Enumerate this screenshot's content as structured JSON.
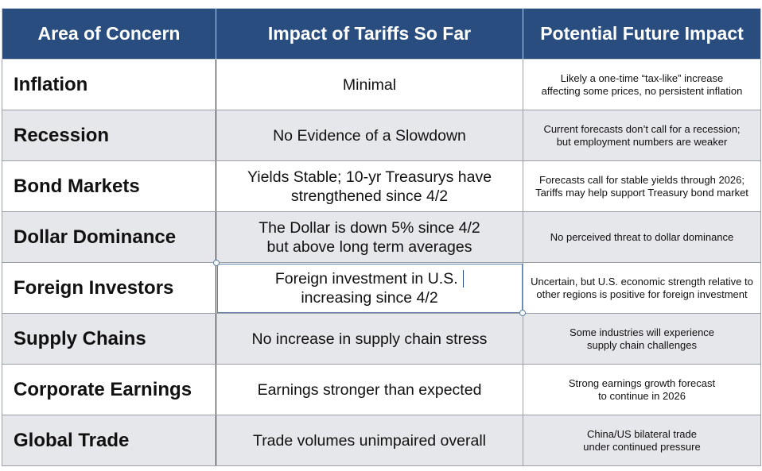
{
  "table": {
    "headers": [
      "Area of Concern",
      "Impact of Tariffs So Far",
      "Potential Future Impact"
    ],
    "rows": [
      {
        "area": "Inflation",
        "impact": [
          "Minimal"
        ],
        "future": [
          "Likely a one-time “tax-like” increase",
          "affecting some prices, no persistent inflation"
        ]
      },
      {
        "area": "Recession",
        "impact": [
          "No Evidence of a Slowdown"
        ],
        "future": [
          "Current forecasts don’t call for a recession;",
          "but employment numbers are weaker"
        ]
      },
      {
        "area": "Bond Markets",
        "impact": [
          "Yields Stable; 10-yr Treasurys have",
          "strengthened since 4/2"
        ],
        "future": [
          "Forecasts call for stable yields through 2026;",
          "Tariffs may help support Treasury bond market"
        ]
      },
      {
        "area": "Dollar Dominance",
        "impact": [
          "The Dollar is down 5% since 4/2",
          "but above long term averages"
        ],
        "future": [
          "No perceived threat to dollar dominance"
        ]
      },
      {
        "area": "Foreign Investors",
        "impact": [
          "Foreign investment in U.S.",
          "increasing since 4/2"
        ],
        "future": [
          "Uncertain, but U.S. economic strength relative to",
          "other regions is positive for foreign investment"
        ]
      },
      {
        "area": "Supply Chains",
        "impact": [
          "No increase in supply chain stress"
        ],
        "future": [
          "Some industries will experience",
          "supply chain challenges"
        ]
      },
      {
        "area": "Corporate Earnings",
        "impact": [
          "Earnings stronger than expected"
        ],
        "future": [
          "Strong earnings growth forecast",
          "to continue in 2026"
        ]
      },
      {
        "area": "Global Trade",
        "impact": [
          "Trade volumes unimpaired overall"
        ],
        "future": [
          "China/US bilateral trade",
          "under continued pressure"
        ]
      }
    ]
  },
  "selection": {
    "row_index": 4,
    "column": "impact"
  },
  "colors": {
    "header_bg": "#2a4d7f",
    "header_text": "#ffffff",
    "shaded_row": "#e6e7ea",
    "plain_row": "#ffffff"
  }
}
